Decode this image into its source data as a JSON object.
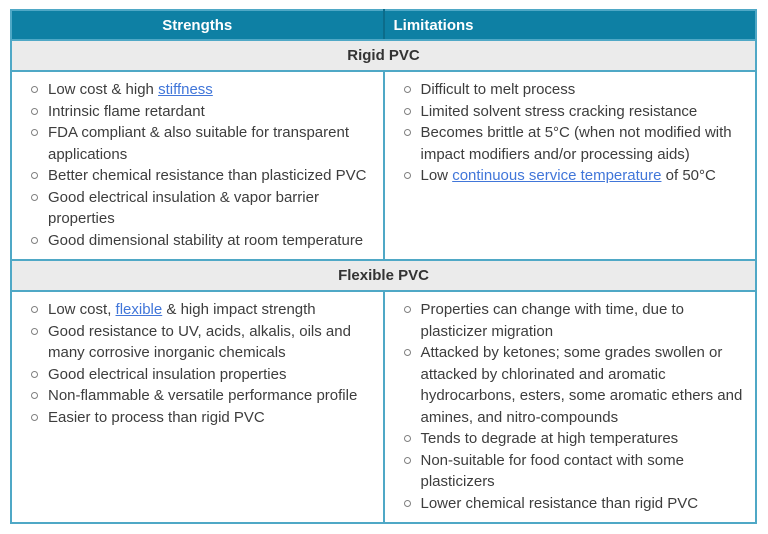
{
  "colors": {
    "header_bg": "#0e80a4",
    "header_divider": "#0c6c8a",
    "border_teal": "#4fa8c6",
    "section_bg": "#ebebeb",
    "text_color": "#3d3d3d",
    "link_color": "#4176d9",
    "bullet_color": "#808080"
  },
  "table": {
    "columns": [
      {
        "label": "Strengths"
      },
      {
        "label": "Limitations"
      }
    ],
    "sections": [
      {
        "title": "Rigid PVC",
        "strengths": [
          [
            {
              "t": "Low cost & high "
            },
            {
              "t": "stiffness",
              "link": true
            }
          ],
          [
            {
              "t": "Intrinsic flame retardant"
            }
          ],
          [
            {
              "t": "FDA compliant & also suitable for transparent applications"
            }
          ],
          [
            {
              "t": "Better chemical resistance than plasticized PVC"
            }
          ],
          [
            {
              "t": "Good electrical insulation & vapor barrier properties"
            }
          ],
          [
            {
              "t": "Good dimensional stability at room temperature"
            }
          ]
        ],
        "limitations": [
          [
            {
              "t": "Difficult to melt process"
            }
          ],
          [
            {
              "t": "Limited solvent stress cracking resistance"
            }
          ],
          [
            {
              "t": "Becomes brittle at 5°C (when not modified with impact modifiers and/or processing aids)"
            }
          ],
          [
            {
              "t": "Low "
            },
            {
              "t": "continuous service temperature",
              "link": true
            },
            {
              "t": " of 50°C"
            }
          ]
        ]
      },
      {
        "title": "Flexible PVC",
        "strengths": [
          [
            {
              "t": "Low cost, "
            },
            {
              "t": "flexible",
              "link": true
            },
            {
              "t": " & high impact strength"
            }
          ],
          [
            {
              "t": "Good resistance to UV, acids, alkalis, oils and many corrosive inorganic chemicals"
            }
          ],
          [
            {
              "t": "Good electrical insulation properties"
            }
          ],
          [
            {
              "t": "Non-flammable & versatile performance profile"
            }
          ],
          [
            {
              "t": "Easier to process than rigid PVC"
            }
          ]
        ],
        "limitations": [
          [
            {
              "t": "Properties can change with time, due to plasticizer migration"
            }
          ],
          [
            {
              "t": "Attacked by ketones; some grades swollen or attacked by chlorinated and aromatic hydrocarbons, esters, some aromatic ethers and amines, and nitro-compounds"
            }
          ],
          [
            {
              "t": "Tends to degrade at high temperatures"
            }
          ],
          [
            {
              "t": "Non-suitable for food contact with some plasticizers"
            }
          ],
          [
            {
              "t": "Lower chemical resistance than rigid PVC"
            }
          ]
        ]
      }
    ]
  }
}
